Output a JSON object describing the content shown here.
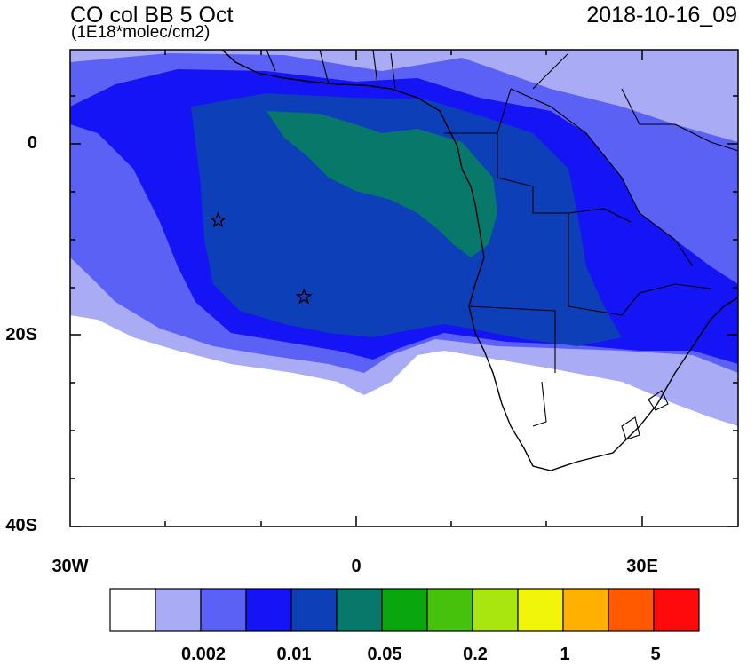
{
  "map": {
    "title": "CO col BB 5 Oct",
    "units": "(1E18*molec/cm2)",
    "timestamp": "2018-10-16_09",
    "lat_labels": [
      "0",
      "20S",
      "40S"
    ],
    "lon_labels": [
      "30W",
      "0",
      "30E"
    ],
    "markers": [
      {
        "name": "star-marker-1",
        "lon": -14.5,
        "lat": -8
      },
      {
        "name": "star-marker-2",
        "lon": -5.5,
        "lat": -16
      }
    ]
  },
  "colorbar": {
    "colors": [
      "#ffffff",
      "#a9abf5",
      "#5c61f5",
      "#1414f5",
      "#0c3fb8",
      "#08786b",
      "#0aa60e",
      "#46c20d",
      "#a9e60f",
      "#f0f50a",
      "#ffb000",
      "#ff5a00",
      "#ff0a0a"
    ],
    "labels": [
      "0.002",
      "0.01",
      "0.05",
      "0.2",
      "1",
      "5"
    ]
  }
}
